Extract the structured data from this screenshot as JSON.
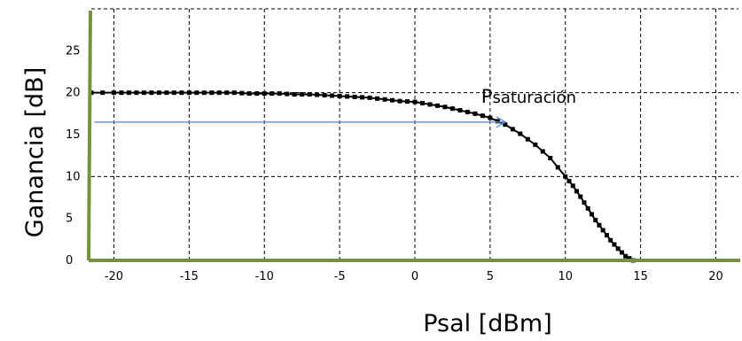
{
  "chart_data": {
    "type": "line",
    "xlabel": "Psal [dBm]",
    "ylabel": "Ganancia [dB]",
    "xlim": [
      -21.5,
      21.5
    ],
    "ylim": [
      0,
      30
    ],
    "xticks": [
      -20,
      -15,
      -10,
      -5,
      0,
      5,
      10,
      15,
      20
    ],
    "yticks": [
      0,
      5,
      10,
      15,
      20,
      25
    ],
    "grid": true,
    "grid_style": "dashed",
    "axis_color": "#76923c",
    "series": [
      {
        "color": "#000000",
        "marker": "square",
        "x": [
          -21.5,
          -20,
          -19,
          -18,
          -17,
          -16,
          -15,
          -14,
          -13,
          -12,
          -11,
          -10,
          -9,
          -8,
          -7,
          -6,
          -5,
          -4,
          -3,
          -2,
          -1,
          0,
          1,
          2,
          3,
          4,
          5,
          6,
          7,
          8,
          9,
          10,
          10.5,
          11,
          11.5,
          12,
          12.5,
          13,
          13.5,
          14,
          14.5
        ],
        "y": [
          20,
          20,
          20,
          20,
          20,
          20,
          20,
          20,
          20,
          20,
          19.9,
          19.9,
          19.9,
          19.8,
          19.8,
          19.7,
          19.6,
          19.5,
          19.4,
          19.2,
          19,
          18.9,
          18.6,
          18.3,
          17.9,
          17.5,
          17,
          16.2,
          15.1,
          13.8,
          12.2,
          10,
          8.9,
          7.6,
          6.2,
          4.8,
          3.6,
          2.4,
          1.4,
          0.5,
          0
        ]
      }
    ],
    "annotations": [
      {
        "text_main": "P",
        "text_sub": "saturación",
        "x": 5.7,
        "y": 18.5
      }
    ],
    "arrow": {
      "color": "#5b8fd9",
      "from": [
        -21.3,
        16.5
      ],
      "to": [
        6,
        16.5
      ]
    }
  }
}
